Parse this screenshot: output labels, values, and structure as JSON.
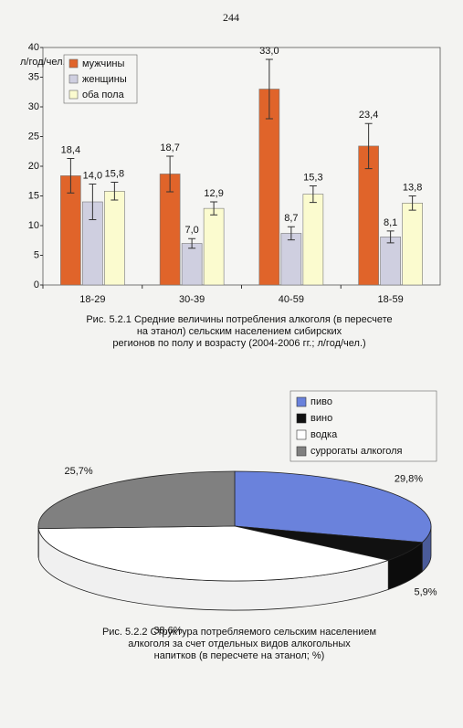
{
  "page_number": "244",
  "chart_data": [
    {
      "type": "bar",
      "y_label": "л/год/чел.",
      "categories": [
        "18-29",
        "30-39",
        "40-59",
        "18-59"
      ],
      "series": [
        {
          "name": "мужчины",
          "color": "#e0642a",
          "values": [
            18.4,
            18.7,
            33.0,
            23.4
          ],
          "value_labels": [
            "18,4",
            "18,7",
            "33,0",
            "23,4"
          ],
          "errors": [
            2.9,
            3.0,
            5.0,
            3.8
          ]
        },
        {
          "name": "женщины",
          "color": "#cfcfe0",
          "values": [
            14.0,
            7.0,
            8.7,
            8.1
          ],
          "value_labels": [
            "14,0",
            "7,0",
            "8,7",
            "8,1"
          ],
          "errors": [
            3.0,
            0.8,
            1.1,
            1.0
          ]
        },
        {
          "name": "оба пола",
          "color": "#fbfbcf",
          "values": [
            15.8,
            12.9,
            15.3,
            13.8
          ],
          "value_labels": [
            "15,8",
            "12,9",
            "15,3",
            "13,8"
          ],
          "errors": [
            1.5,
            1.1,
            1.4,
            1.2
          ]
        }
      ],
      "ylim": [
        0,
        40
      ],
      "yticks": [
        0,
        5,
        10,
        15,
        20,
        25,
        30,
        35,
        40
      ],
      "grid": false,
      "caption": [
        "Рис. 5.2.1 Средние величины потребления алкоголя (в пересчете",
        "на этанол) сельским населением сибирских",
        "регионов по полу и возрасту (2004-2006 гг.; л/год/чел.)"
      ]
    },
    {
      "type": "pie",
      "categories": [
        "пиво",
        "вино",
        "водка",
        "суррогаты алкоголя"
      ],
      "values": [
        29.8,
        5.9,
        38.6,
        25.7
      ],
      "value_labels": [
        "29,8%",
        "5,9%",
        "38,6%",
        "25,7%"
      ],
      "colors": [
        "#6a82dc",
        "#111111",
        "#ffffff",
        "#808080"
      ],
      "caption": [
        "Рис. 5.2.2 Структура потребляемого сельским населением",
        "алкоголя за счет отдельных видов алкогольных",
        "напитков (в пересчете на этанол; %)"
      ]
    }
  ]
}
